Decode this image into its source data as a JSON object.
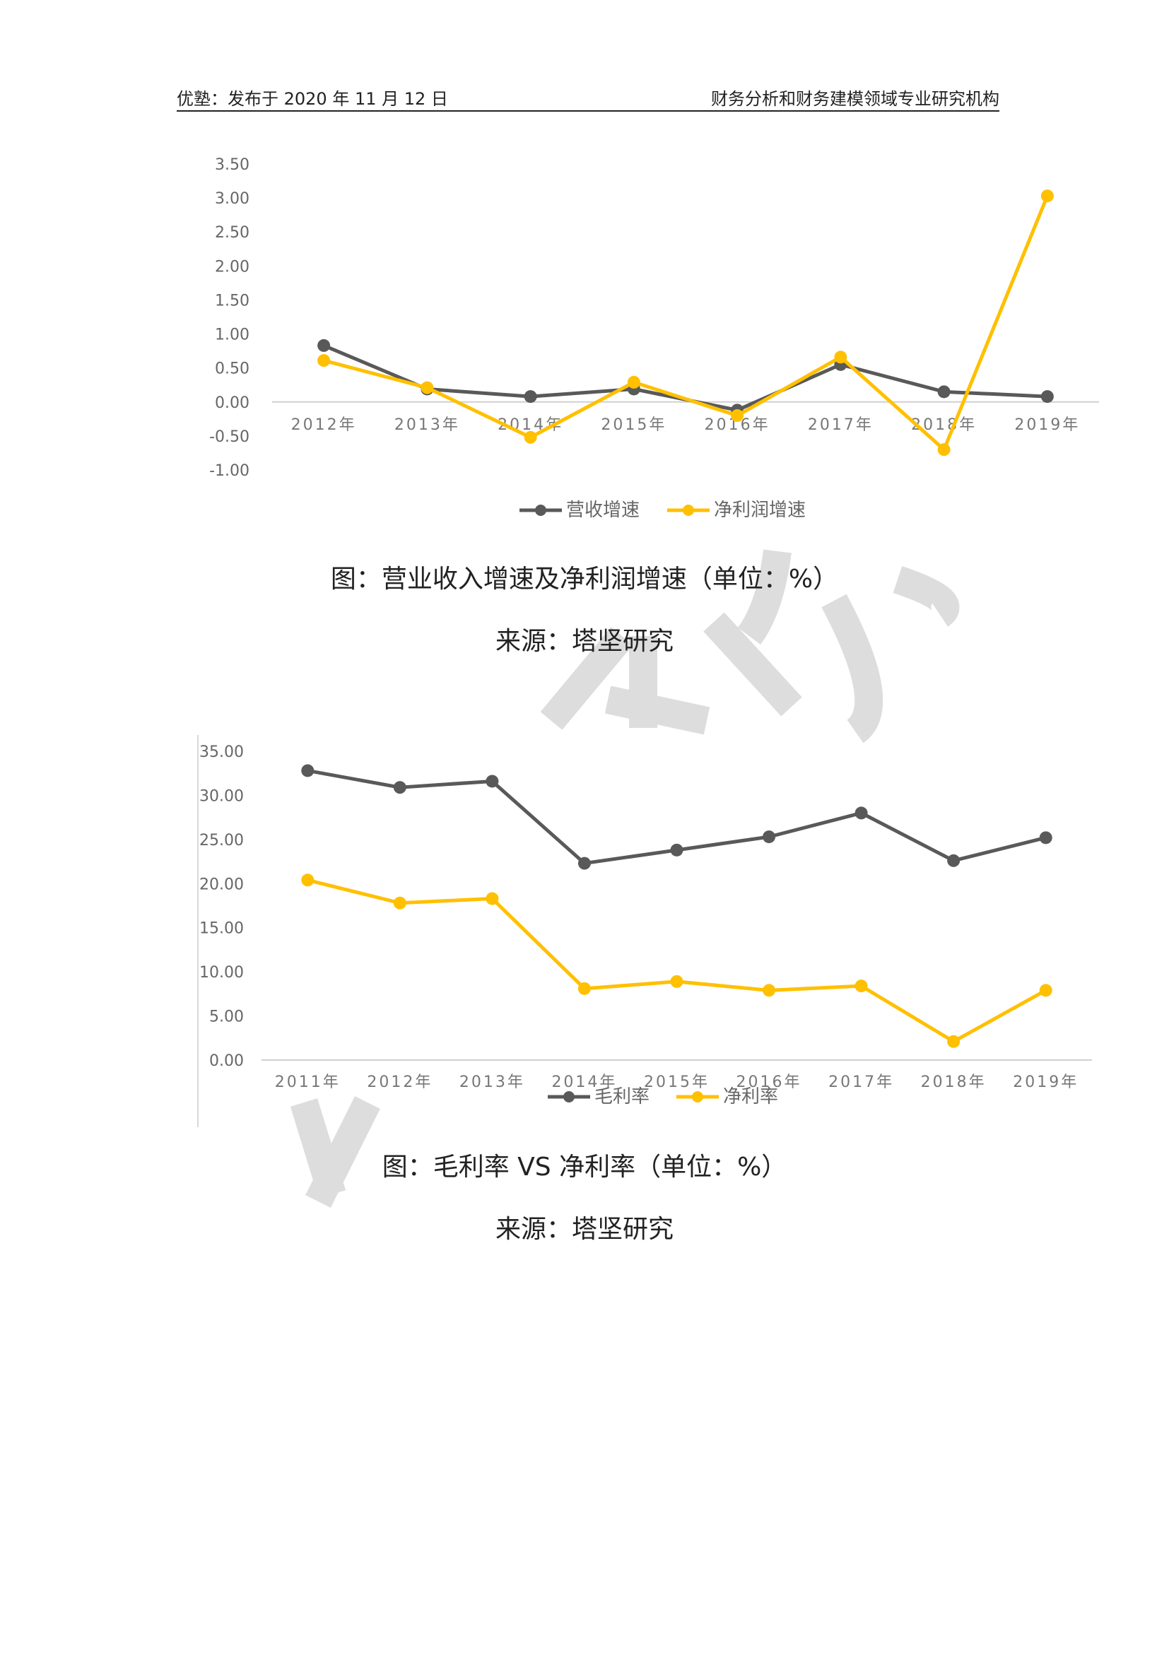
{
  "header": {
    "left": "优塾：发布于 2020 年 11 月 12 日",
    "right": "财务分析和财务建模领域专业研究机构"
  },
  "colors": {
    "dark": "#595959",
    "gold": "#FFC000",
    "watermark": "#d9d9d9"
  },
  "captions": {
    "chart1_title": "图：营业收入增速及净利润增速（单位：%）",
    "chart1_source": "来源：塔坚研究",
    "chart2_title": "图：毛利率 VS 净利率（单位：%）",
    "chart2_source": "来源：塔坚研究"
  },
  "chart_data": [
    {
      "type": "line",
      "categories": [
        "2012年",
        "2013年",
        "2014年",
        "2015年",
        "2016年",
        "2017年",
        "2018年",
        "2019年"
      ],
      "series": [
        {
          "name": "营收增速",
          "color": "#595959",
          "values": [
            0.83,
            0.19,
            0.08,
            0.19,
            -0.12,
            0.55,
            0.15,
            0.08
          ]
        },
        {
          "name": "净利润增速",
          "color": "#FFC000",
          "values": [
            0.61,
            0.21,
            -0.52,
            0.29,
            -0.2,
            0.66,
            -0.7,
            3.03
          ]
        }
      ],
      "yticks": [
        "3.50",
        "3.00",
        "2.50",
        "2.00",
        "1.50",
        "1.00",
        "0.50",
        "0.00",
        "-0.50",
        "-1.00"
      ],
      "ylim": [
        -1.0,
        3.5
      ],
      "legend": "bottom"
    },
    {
      "type": "line",
      "categories": [
        "2011年",
        "2012年",
        "2013年",
        "2014年",
        "2015年",
        "2016年",
        "2017年",
        "2018年",
        "2019年"
      ],
      "series": [
        {
          "name": "毛利率",
          "color": "#595959",
          "values": [
            32.8,
            30.9,
            31.6,
            22.3,
            23.8,
            25.3,
            28.0,
            22.6,
            25.2
          ]
        },
        {
          "name": "净利率",
          "color": "#FFC000",
          "values": [
            20.4,
            17.8,
            18.3,
            8.1,
            8.9,
            7.9,
            8.4,
            2.1,
            7.9
          ]
        }
      ],
      "yticks": [
        "35.00",
        "30.00",
        "25.00",
        "20.00",
        "15.00",
        "10.00",
        "5.00",
        "0.00"
      ],
      "ylim": [
        0,
        35
      ],
      "legend": "bottom"
    }
  ]
}
